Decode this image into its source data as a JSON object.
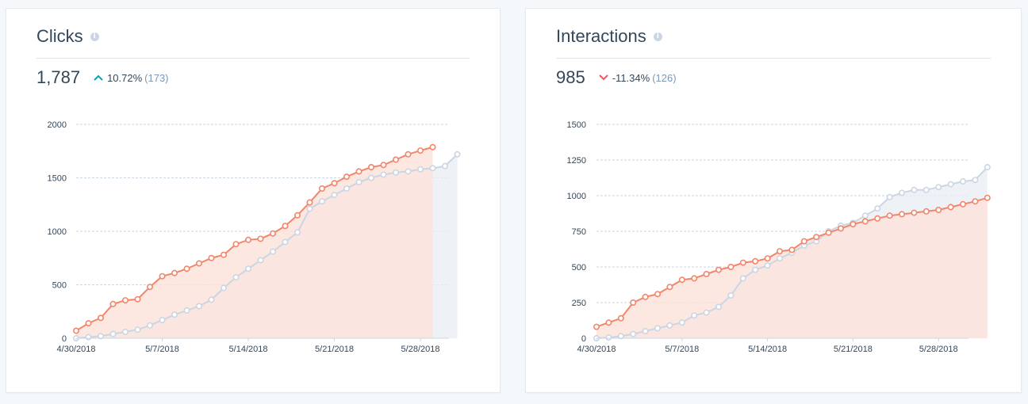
{
  "cards": [
    {
      "title": "Clicks",
      "value": "1,787",
      "change_pct": "10.72%",
      "change_abs": "(173)",
      "direction": "up"
    },
    {
      "title": "Interactions",
      "value": "985",
      "change_pct": "-11.34%",
      "change_abs": "(126)",
      "direction": "down"
    }
  ],
  "colors": {
    "current": "#f2866b",
    "previous": "#cbd6e2",
    "up": "#00a4bd",
    "down": "#f2545b",
    "current_fill": "#fbe3dc",
    "previous_fill": "#e8eef4"
  },
  "chart_data": [
    {
      "type": "area",
      "x_ticks": [
        "4/30/2018",
        "5/7/2018",
        "5/14/2018",
        "5/21/2018",
        "5/28/2018"
      ],
      "x_tick_index": [
        0,
        7,
        14,
        21,
        28
      ],
      "ylim": [
        0,
        2000
      ],
      "y_ticks": [
        "0",
        "500",
        "1000",
        "1500",
        "2000"
      ],
      "grid": true,
      "series": [
        {
          "values": [
            70,
            140,
            190,
            320,
            355,
            365,
            480,
            580,
            610,
            650,
            700,
            750,
            780,
            880,
            920,
            930,
            980,
            1050,
            1150,
            1270,
            1400,
            1450,
            1510,
            1560,
            1600,
            1620,
            1670,
            1720,
            1755,
            1787
          ]
        },
        {
          "values": [
            0,
            10,
            20,
            40,
            60,
            80,
            120,
            170,
            220,
            260,
            300,
            360,
            470,
            570,
            650,
            730,
            810,
            900,
            990,
            1210,
            1280,
            1340,
            1400,
            1460,
            1500,
            1530,
            1550,
            1560,
            1580,
            1590,
            1610,
            1720
          ]
        }
      ]
    },
    {
      "type": "area",
      "x_ticks": [
        "4/30/2018",
        "5/7/2018",
        "5/14/2018",
        "5/21/2018",
        "5/28/2018"
      ],
      "x_tick_index": [
        0,
        7,
        14,
        21,
        28
      ],
      "ylim": [
        0,
        1500
      ],
      "y_ticks": [
        "0",
        "250",
        "500",
        "750",
        "1000",
        "1250",
        "1500"
      ],
      "grid": true,
      "series": [
        {
          "values": [
            80,
            110,
            140,
            250,
            290,
            310,
            360,
            410,
            420,
            450,
            480,
            500,
            530,
            540,
            560,
            610,
            620,
            680,
            710,
            740,
            770,
            800,
            820,
            840,
            860,
            870,
            880,
            890,
            900,
            920,
            940,
            960,
            985
          ]
        },
        {
          "values": [
            0,
            5,
            15,
            30,
            50,
            70,
            90,
            110,
            160,
            180,
            220,
            300,
            420,
            480,
            510,
            560,
            600,
            650,
            680,
            750,
            790,
            810,
            860,
            910,
            990,
            1020,
            1040,
            1040,
            1060,
            1080,
            1100,
            1110,
            1200
          ]
        }
      ]
    }
  ]
}
